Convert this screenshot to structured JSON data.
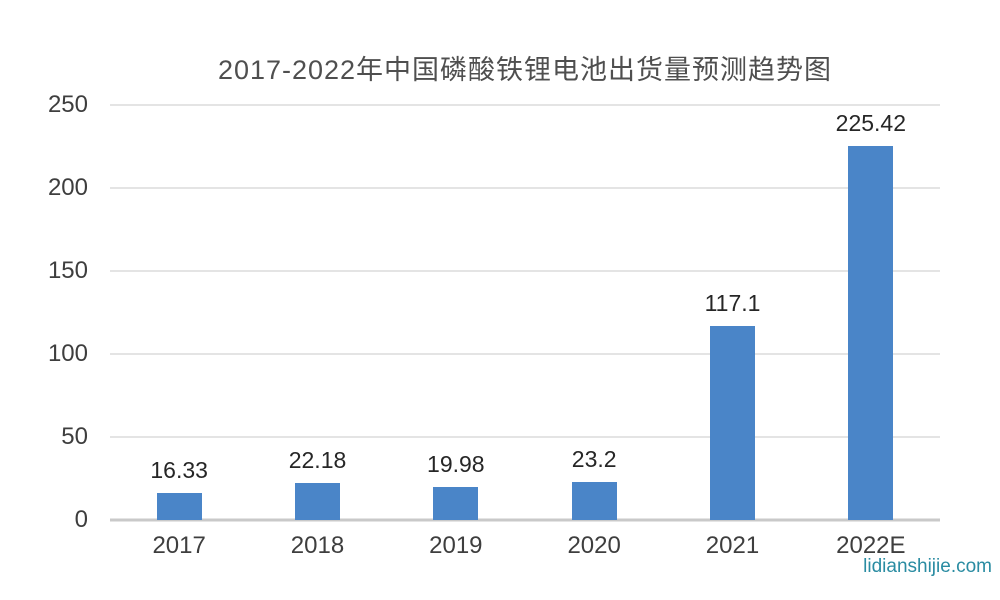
{
  "chart_data": {
    "type": "bar",
    "title": "2017-2022年中国磷酸铁锂电池出货量预测趋势图",
    "categories": [
      "2017",
      "2018",
      "2019",
      "2020",
      "2021",
      "2022E"
    ],
    "values": [
      16.33,
      22.18,
      19.98,
      23.2,
      117.1,
      225.42
    ],
    "data_labels": [
      "16.33",
      "22.18",
      "19.98",
      "23.2",
      "117.1",
      "225.42"
    ],
    "xlabel": "",
    "ylabel": "",
    "ylim": [
      0,
      250
    ],
    "yticks": [
      0,
      50,
      100,
      150,
      200,
      250
    ],
    "grid": true,
    "legend_position": "none",
    "bar_color": "#4a85c8",
    "colors": {
      "title_text": "#4f4f4f",
      "axis_text": "#3e3e3e",
      "value_text": "#262626",
      "gridline": "#e4e4e4",
      "axis_line": "#c9c9c9",
      "background": "#ffffff"
    }
  },
  "watermark": {
    "text": "lidianshijie.com",
    "color": "#2a8ca2"
  }
}
